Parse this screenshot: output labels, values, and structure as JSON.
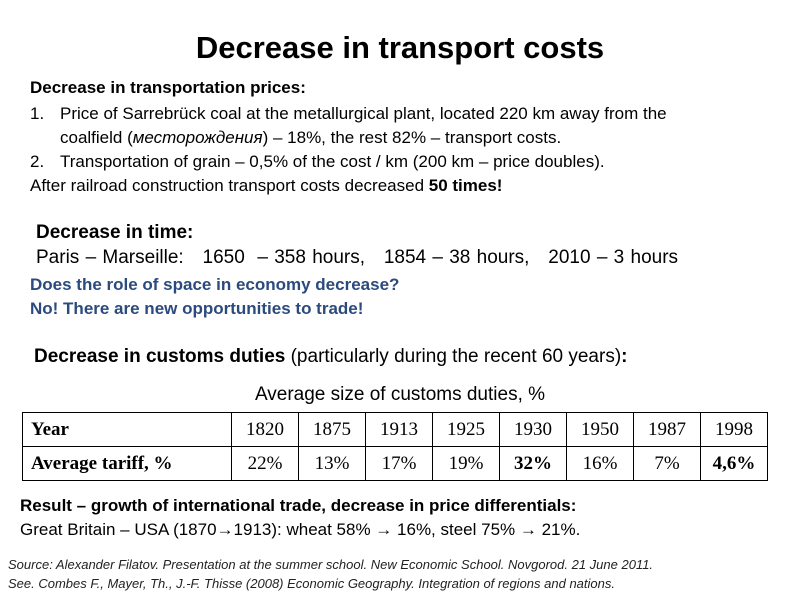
{
  "title": "Decrease in transport costs",
  "prices": {
    "heading": "Decrease in transportation prices:",
    "items": [
      {
        "num": "1.",
        "line1": "Price of Sarrebrück coal at the metallurgical plant, located 220 km away from the",
        "line2_pre": "coalfield (",
        "line2_italic": "месторождения",
        "line2_post": ") – 18%, the rest 82% – transport costs."
      },
      {
        "num": "2.",
        "line1": "Transportation of grain – 0,5% of the cost / km (200 km – price doubles)."
      }
    ],
    "after_text": "After railroad construction transport costs decreased ",
    "after_bold": "50 times!"
  },
  "time": {
    "heading": "Decrease in time:",
    "line": "Paris – Marseille:   1650  – 358 hours,   1854 – 38 hours,   2010 – 3 hours"
  },
  "questions": {
    "q1": "Does the role of space in economy decrease?",
    "q2": "No! There are new opportunities to trade!"
  },
  "customs": {
    "heading_bold": "Decrease in customs duties",
    "heading_rest": " (particularly during the recent 60 years)",
    "heading_colon": ":"
  },
  "chart_data": {
    "type": "table",
    "title": "Average size of customs duties, %",
    "row_headers": [
      "Year",
      "Average tariff, %"
    ],
    "years": [
      "1820",
      "1875",
      "1913",
      "1925",
      "1930",
      "1950",
      "1987",
      "1998"
    ],
    "tariffs": [
      "22%",
      "13%",
      "17%",
      "19%",
      "32%",
      "16%",
      "7%",
      "4,6%"
    ],
    "bold_tariffs": [
      "32%",
      "4,6%"
    ]
  },
  "result": {
    "heading": "Result – growth of international trade, decrease in price differentials:",
    "line": "Great Britain – USA (1870→1913): wheat 58% → 16%, steel 75% → 21%."
  },
  "source": {
    "line1": "Source: Alexander Filatov. Presentation at the summer school. New  Economic School. Novgorod.  21 June 2011.",
    "line2": "See. Combes F., Mayer, Th., J.-F. Thisse (2008) Economic Geography. Integration of regions and nations."
  },
  "colors": {
    "question_blue": "#2b4a7d"
  }
}
